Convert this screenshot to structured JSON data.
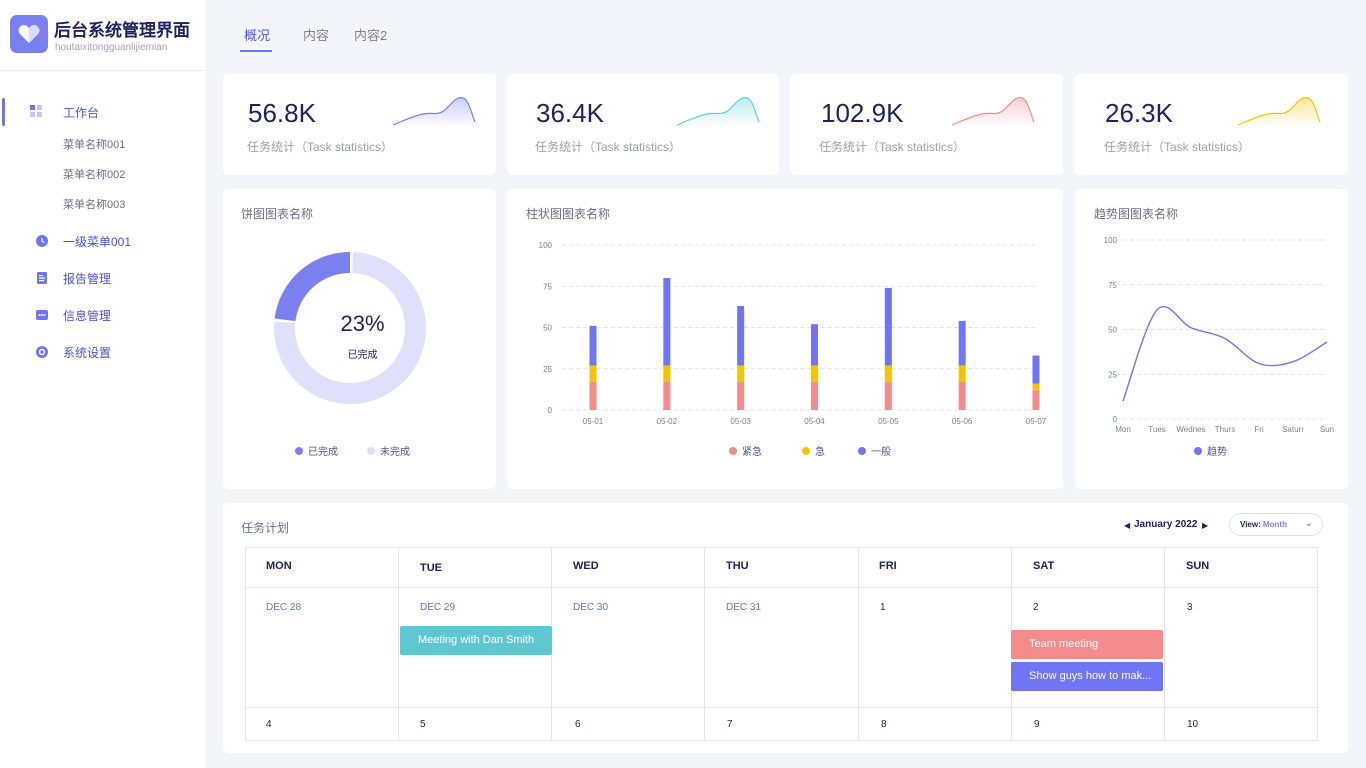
{
  "app": {
    "title": "后台系统管理界面",
    "subtitle": "houtaixitongguanlijiemian"
  },
  "sidebar": {
    "items": [
      {
        "label": "工作台",
        "icon": "dashboard-icon",
        "active": true
      },
      {
        "label": "一级菜单001",
        "icon": "clock-icon"
      },
      {
        "label": "报告管理",
        "icon": "document-icon"
      },
      {
        "label": "信息管理",
        "icon": "message-icon"
      },
      {
        "label": "系统设置",
        "icon": "gear-icon"
      }
    ],
    "sub_items": [
      "菜单名称001",
      "菜单名称002",
      "菜单名称003"
    ]
  },
  "tabs": [
    {
      "label": "概况",
      "active": true
    },
    {
      "label": "内容"
    },
    {
      "label": "内容2"
    }
  ],
  "stats": [
    {
      "value": "56.8K",
      "label": "任务统计（Task statistics）",
      "color": "#7b80f0"
    },
    {
      "value": "36.4K",
      "label": "任务统计（Task statistics）",
      "color": "#5fd0dc"
    },
    {
      "value": "102.9K",
      "label": "任务统计（Task statistics）",
      "color": "#f58b8b"
    },
    {
      "value": "26.3K",
      "label": "任务统计（Task statistics）",
      "color": "#f5c400"
    }
  ],
  "pie": {
    "title": "饼图图表名称",
    "percent_label": "23%",
    "center_label": "已完成",
    "legend": [
      "已完成",
      "未完成"
    ]
  },
  "bar": {
    "title": "柱状图图表名称",
    "legend": [
      "紧急",
      "急",
      "一般"
    ]
  },
  "trend": {
    "title": "趋势图图表名称",
    "legend": [
      "趋势"
    ]
  },
  "chart_data": [
    {
      "type": "pie",
      "title": "饼图图表名称",
      "categories": [
        "已完成",
        "未完成"
      ],
      "values": [
        23,
        77
      ],
      "colors": [
        "#7b80f0",
        "#dfe0fb"
      ],
      "legend_placement": "bottom"
    },
    {
      "type": "bar",
      "title": "柱状图图表名称",
      "stacked": true,
      "categories": [
        "05-01",
        "05-02",
        "05-03",
        "05-04",
        "05-05",
        "05-06",
        "05-07"
      ],
      "ylim": [
        0,
        100
      ],
      "yticks": [
        0,
        25,
        50,
        75,
        100
      ],
      "grid": true,
      "legend_placement": "bottom",
      "series": [
        {
          "name": "紧急",
          "color": "#f58b8b",
          "values": [
            17,
            17,
            17,
            17,
            17,
            17,
            12
          ]
        },
        {
          "name": "急",
          "color": "#f5c400",
          "values": [
            10,
            10,
            10,
            10,
            10,
            10,
            4
          ]
        },
        {
          "name": "一般",
          "color": "#6f75f5",
          "values": [
            24,
            53,
            36,
            25,
            47,
            27,
            17
          ]
        }
      ]
    },
    {
      "type": "line",
      "title": "趋势图图表名称",
      "categories": [
        "Mon",
        "Tues",
        "Wednes",
        "Thurs",
        "Fri",
        "Saturr",
        "Sun"
      ],
      "ylim": [
        0,
        100
      ],
      "yticks": [
        0,
        25,
        50,
        75,
        100
      ],
      "grid": true,
      "legend_placement": "bottom",
      "series": [
        {
          "name": "趋势",
          "color": "#6f75f5",
          "values": [
            10,
            61,
            51,
            45,
            31,
            32,
            43
          ]
        }
      ]
    }
  ],
  "calendar": {
    "title": "任务计划",
    "month": "January 2022",
    "view_prefix": "View:",
    "view_value": "Month",
    "days": [
      "MON",
      "TUE",
      "WED",
      "THU",
      "FRI",
      "SAT",
      "SUN"
    ],
    "weeks": [
      [
        "DEC 28",
        "DEC 29",
        "DEC 30",
        "DEC 31",
        "1",
        "2",
        "3"
      ],
      [
        "4",
        "5",
        "6",
        "7",
        "8",
        "9",
        "10"
      ]
    ],
    "events": [
      {
        "title": "Meeting with Dan Smith",
        "color": "#5ec7d2"
      },
      {
        "title": "Team meeting",
        "color": "#f58b8b"
      },
      {
        "title": "Show guys how to mak...",
        "color": "#6f75f5"
      }
    ]
  }
}
